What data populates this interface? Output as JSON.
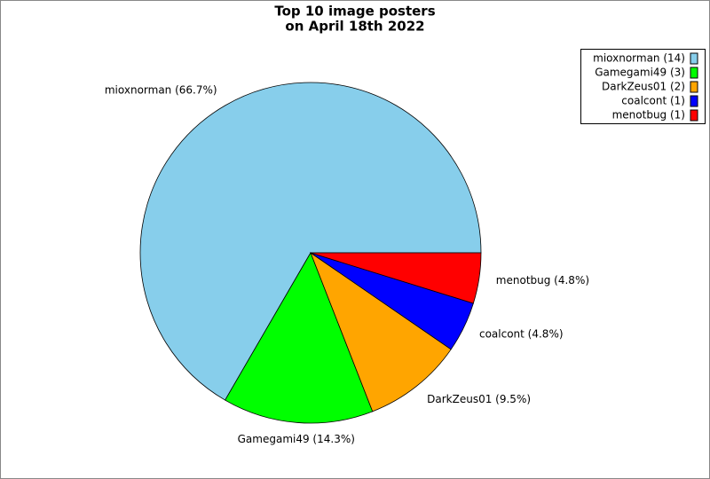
{
  "chart_data": {
    "type": "pie",
    "title": [
      "Top 10 image posters",
      "on April 18th 2022"
    ],
    "categories": [
      "mioxnorman (14)",
      "Gamegami49 (3)",
      "DarkZeus01 (2)",
      "coalcont (1)",
      "menotbug (1)"
    ],
    "values": [
      66.7,
      14.3,
      9.5,
      4.8,
      4.8
    ],
    "value_labels": [
      "mioxnorman (66.7%)",
      "Gamegami49 (14.3%)",
      "DarkZeus01 (9.5%)",
      "coalcont (4.8%)",
      "menotbug (4.8%)"
    ],
    "colors": [
      "#87ceeb",
      "#00ff00",
      "#ffa500",
      "#0000ff",
      "#ff0000"
    ],
    "legend": "upper right"
  }
}
